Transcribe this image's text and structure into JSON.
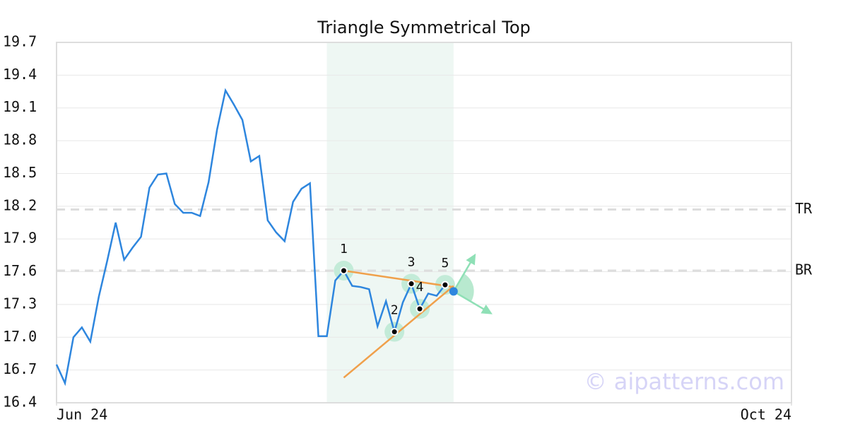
{
  "chart_data": {
    "type": "line",
    "title": "Triangle Symmetrical Top",
    "x": [
      0,
      1,
      2,
      3,
      4,
      5,
      6,
      7,
      8,
      9,
      10,
      11,
      12,
      13,
      14,
      15,
      16,
      17,
      18,
      19,
      20,
      21,
      22,
      23,
      24,
      25,
      26,
      27,
      28,
      29,
      30,
      31,
      32,
      33,
      34,
      35,
      36,
      37,
      38,
      39,
      40,
      41,
      42,
      43,
      44,
      45,
      46
    ],
    "values": [
      16.75,
      16.58,
      17.0,
      17.09,
      16.96,
      17.37,
      17.7,
      18.05,
      17.71,
      17.82,
      17.92,
      18.37,
      18.49,
      18.5,
      18.22,
      18.14,
      18.14,
      18.11,
      18.42,
      18.9,
      19.26,
      19.13,
      18.99,
      18.61,
      18.66,
      18.07,
      17.96,
      17.88,
      18.24,
      18.36,
      18.41,
      17.01,
      17.01,
      17.52,
      17.61,
      17.47,
      17.46,
      17.44,
      17.1,
      17.33,
      17.05,
      17.32,
      17.49,
      17.26,
      17.4,
      17.38,
      17.48
    ],
    "color": "#2e86de",
    "xlim": [
      0,
      87
    ],
    "xticks": [
      {
        "value": 0,
        "label": "Jun 24"
      },
      {
        "value": 87,
        "label": "Oct 24"
      }
    ],
    "ylim": [
      16.4,
      19.7
    ],
    "yticks": [
      16.4,
      16.7,
      {
        "value": 17,
        "label": "17.0"
      },
      17.3,
      17.6,
      17.9,
      18.2,
      18.5,
      18.8,
      19.1,
      19.4,
      19.7
    ],
    "grid": true,
    "reference_lines": [
      {
        "label": "TR",
        "value": 18.17
      },
      {
        "label": "BR",
        "value": 17.61
      }
    ],
    "highlight_range": [
      32,
      47
    ],
    "pattern_points": {
      "x": [
        34,
        40,
        42,
        43,
        46
      ],
      "values": [
        17.61,
        17.05,
        17.49,
        17.26,
        17.48
      ],
      "labels": [
        "1",
        "2",
        "3",
        "4",
        "5"
      ]
    },
    "trend_lines": [
      {
        "x": [
          34,
          47
        ],
        "values": [
          17.61,
          17.46
        ]
      },
      {
        "x": [
          34,
          47
        ],
        "values": [
          16.63,
          17.47
        ]
      }
    ],
    "breakout": {
      "x": 47,
      "value": 17.42
    },
    "arrows": [
      {
        "x": [
          47,
          49.5
        ],
        "values": [
          17.42,
          17.75
        ]
      },
      {
        "x": [
          47,
          51.4
        ],
        "values": [
          17.42,
          17.22
        ]
      }
    ],
    "watermark": "© aipatterns.com"
  }
}
